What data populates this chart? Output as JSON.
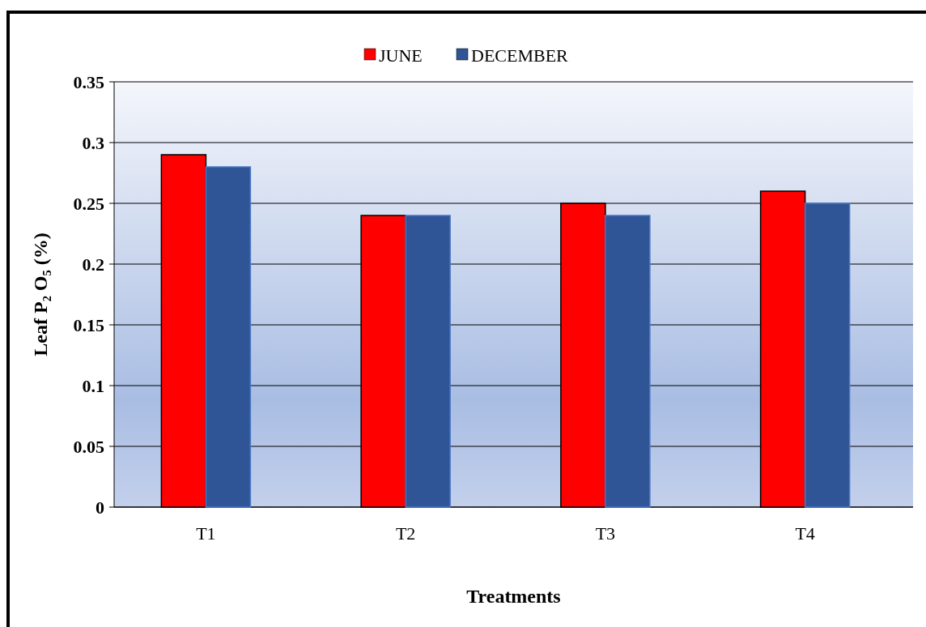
{
  "chart_data": {
    "type": "bar",
    "xlabel": "Treatments",
    "ylabel": "Leaf P₂ O₅ (%)",
    "categories": [
      "T1",
      "T2",
      "T3",
      "T4"
    ],
    "series": [
      {
        "name": "JUNE",
        "color": "#ff0000",
        "values": [
          0.29,
          0.24,
          0.25,
          0.26
        ]
      },
      {
        "name": "DECEMBER",
        "color": "#2f5597",
        "values": [
          0.28,
          0.24,
          0.24,
          0.25
        ]
      }
    ],
    "ylim": [
      0,
      0.35
    ],
    "yticks": [
      0,
      0.05,
      0.1,
      0.15,
      0.2,
      0.25,
      0.3,
      0.35
    ],
    "grid": "y",
    "legend": "top"
  }
}
